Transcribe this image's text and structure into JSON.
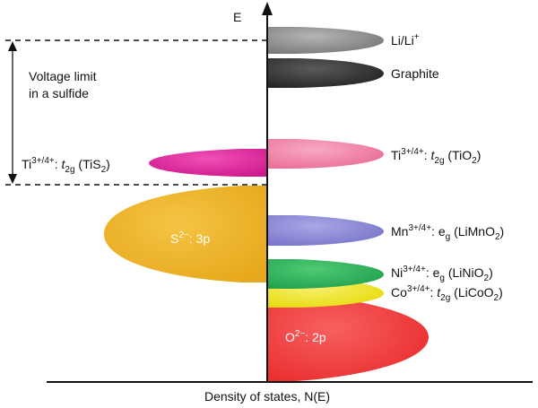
{
  "axis": {
    "y_label": "E",
    "x_label": "Density of states, N(E)"
  },
  "annotation": {
    "line1": "Voltage limit",
    "line2": "in a sulfide"
  },
  "bands": {
    "li": {
      "base": "Li/Li",
      "sup": "+",
      "color": "#8c8c8c"
    },
    "graphite": {
      "text": "Graphite",
      "color": "#3a3a3a"
    },
    "ti_oxide": {
      "ion": "Ti",
      "ox": "3+/4+",
      "colon": ": ",
      "orb": "t",
      "orb_sub": "2g",
      "comp_open": " (TiO",
      "comp_sub": "2",
      "comp_close": ")",
      "color": "#f07fa6"
    },
    "ti_sulfide": {
      "ion": "Ti",
      "ox": "3+/4+",
      "colon": ": ",
      "orb": "t",
      "orb_sub": "2g",
      "comp_open": " (TiS",
      "comp_sub": "2",
      "comp_close": ")",
      "color": "#e0219b"
    },
    "sulfur": {
      "ion": "S",
      "charge": "2−",
      "rest": ": 3p",
      "color": "#efb325"
    },
    "mn": {
      "ion": "Mn",
      "ox": "3+/4+",
      "colon": ": ",
      "orb": "e",
      "orb_sub": "g",
      "comp_open": " (LiMnO",
      "comp_sub": "2",
      "comp_close": ")",
      "color": "#8a87d6"
    },
    "ni": {
      "ion": "Ni",
      "ox": "3+/4+",
      "colon": ": ",
      "orb": "e",
      "orb_sub": "g",
      "comp_open": " (LiNiO",
      "comp_sub": "2",
      "comp_close": ")",
      "color": "#2fb35a"
    },
    "co": {
      "ion": "Co",
      "ox": "3+/4+",
      "colon": ": ",
      "orb": "t",
      "orb_sub": "2g",
      "comp_open": " (LiCoO",
      "comp_sub": "2",
      "comp_close": ")",
      "color": "#efe51a"
    },
    "oxygen": {
      "ion": "O",
      "charge": "2−",
      "rest": ": 2p",
      "color": "#f43a3a"
    }
  }
}
